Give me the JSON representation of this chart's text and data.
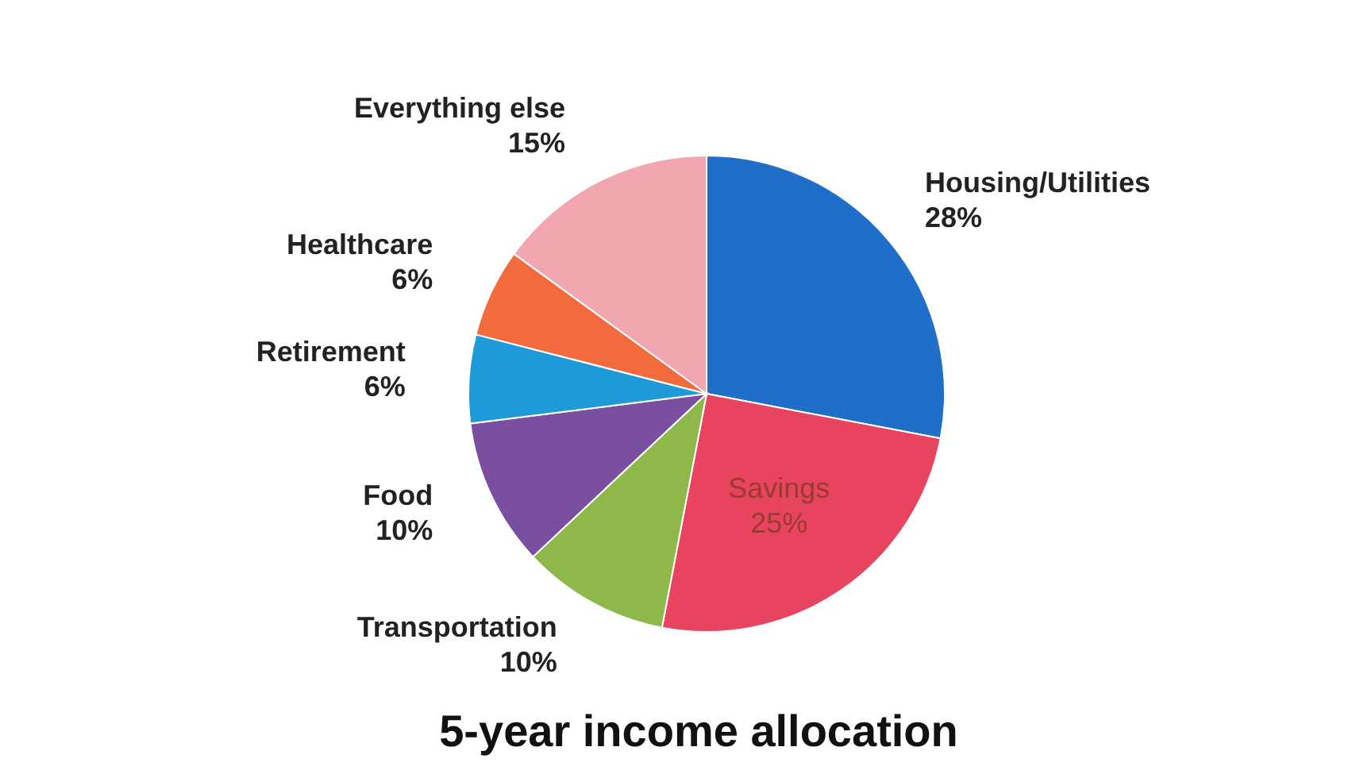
{
  "chart_data": {
    "type": "pie",
    "title": "5-year income allocation",
    "categories": [
      "Housing/Utilities",
      "Savings",
      "Transportation",
      "Food",
      "Retirement",
      "Healthcare",
      "Everything else"
    ],
    "values": [
      28,
      25,
      10,
      10,
      6,
      6,
      15
    ],
    "colors": [
      "#1f6fc8",
      "#e8435f",
      "#8fb84a",
      "#7a4fa0",
      "#1e9ad8",
      "#f36a3c",
      "#f2a7b0"
    ],
    "value_labels": [
      "28%",
      "25%",
      "10%",
      "10%",
      "6%",
      "6%",
      "15%"
    ],
    "data_labels": true
  }
}
